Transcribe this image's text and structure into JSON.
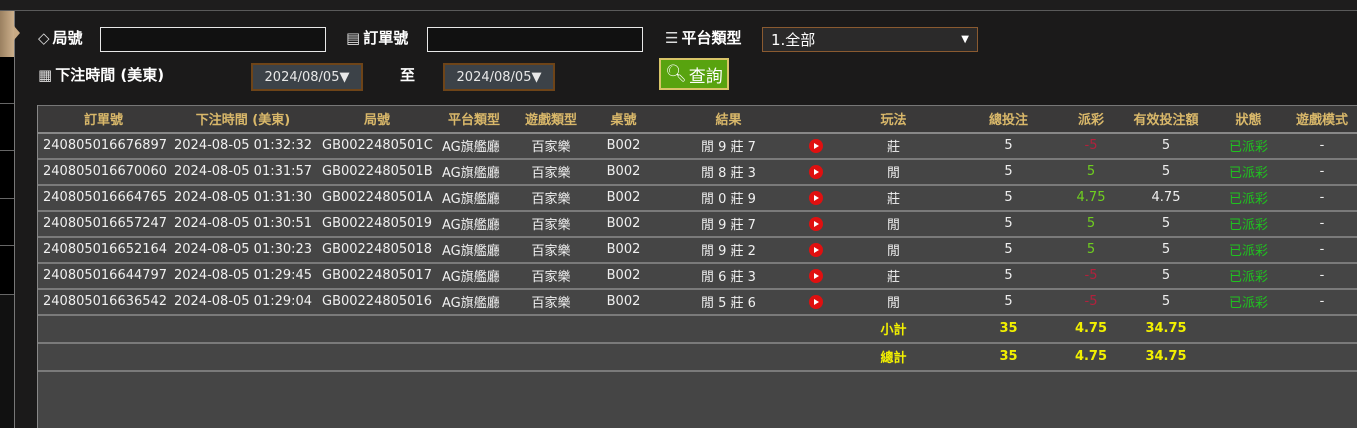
{
  "filters": {
    "round_label": "局號",
    "round_value": "",
    "order_label": "訂單號",
    "order_value": "",
    "platform_label": "平台類型",
    "platform_value": "1.全部",
    "bet_time_label": "下注時間 (美東)",
    "date_from": "2024/08/05▼",
    "to_label": "至",
    "date_to": "2024/08/05▼",
    "query_label": "查詢"
  },
  "table": {
    "headers": [
      "訂單號",
      "下注時間 (美東)",
      "局號",
      "平台類型",
      "遊戲類型",
      "桌號",
      "結果",
      "",
      "玩法",
      "總投注",
      "派彩",
      "有效投注額",
      "狀態",
      "遊戲模式"
    ],
    "rows": [
      [
        "240805016676897",
        "2024-08-05 01:32:32",
        "GB0022480501C",
        "AG旗艦廳",
        "百家樂",
        "B002",
        "閒 9 莊 7",
        "",
        "莊",
        "5",
        "-5",
        "5",
        "已派彩",
        "-"
      ],
      [
        "240805016670060",
        "2024-08-05 01:31:57",
        "GB0022480501B",
        "AG旗艦廳",
        "百家樂",
        "B002",
        "閒 8 莊 3",
        "",
        "閒",
        "5",
        "5",
        "5",
        "已派彩",
        "-"
      ],
      [
        "240805016664765",
        "2024-08-05 01:31:30",
        "GB0022480501A",
        "AG旗艦廳",
        "百家樂",
        "B002",
        "閒 0 莊 9",
        "",
        "莊",
        "5",
        "4.75",
        "4.75",
        "已派彩",
        "-"
      ],
      [
        "240805016657247",
        "2024-08-05 01:30:51",
        "GB00224805019",
        "AG旗艦廳",
        "百家樂",
        "B002",
        "閒 9 莊 7",
        "",
        "閒",
        "5",
        "5",
        "5",
        "已派彩",
        "-"
      ],
      [
        "240805016652164",
        "2024-08-05 01:30:23",
        "GB00224805018",
        "AG旗艦廳",
        "百家樂",
        "B002",
        "閒 9 莊 2",
        "",
        "閒",
        "5",
        "5",
        "5",
        "已派彩",
        "-"
      ],
      [
        "240805016644797",
        "2024-08-05 01:29:45",
        "GB00224805017",
        "AG旗艦廳",
        "百家樂",
        "B002",
        "閒 6 莊 3",
        "",
        "莊",
        "5",
        "-5",
        "5",
        "已派彩",
        "-"
      ],
      [
        "240805016636542",
        "2024-08-05 01:29:04",
        "GB00224805016",
        "AG旗艦廳",
        "百家樂",
        "B002",
        "閒 5 莊 6",
        "",
        "閒",
        "5",
        "-5",
        "5",
        "已派彩",
        "-"
      ]
    ],
    "subtotal": {
      "label": "小計",
      "total_bet": "35",
      "payout": "4.75",
      "valid_bet": "34.75"
    },
    "grand_total": {
      "label": "總計",
      "total_bet": "35",
      "payout": "4.75",
      "valid_bet": "34.75"
    }
  },
  "colors": {
    "header_text": "#d9b86a",
    "positive": "#6fcf1f",
    "negative": "#b3203c",
    "status": "#1fc21f",
    "totals": "#f2f000",
    "query_button": "#58a30f"
  }
}
